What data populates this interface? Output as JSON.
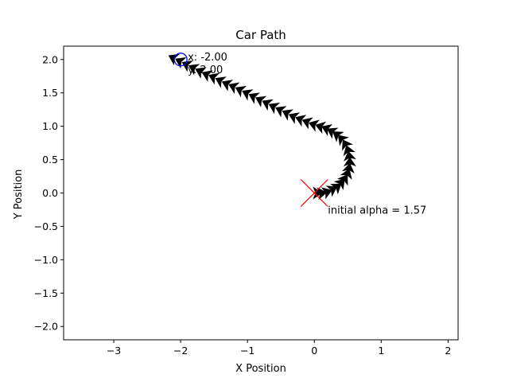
{
  "chart_data": {
    "type": "scatter",
    "title": "Car Path",
    "xlabel": "X Position",
    "ylabel": "Y Position",
    "xlim": [
      -3.75,
      2.15
    ],
    "ylim": [
      -2.2,
      2.2
    ],
    "xticks": [
      -3,
      -2,
      -1,
      0,
      1,
      2
    ],
    "yticks": [
      -2.0,
      -1.5,
      -1.0,
      -0.5,
      0.0,
      0.5,
      1.0,
      1.5,
      2.0
    ],
    "xtick_labels": [
      "−3",
      "−2",
      "−1",
      "0",
      "1",
      "2"
    ],
    "ytick_labels": [
      "−2.0",
      "−1.5",
      "−1.0",
      "−0.5",
      "0.0",
      "0.5",
      "1.0",
      "1.5",
      "2.0"
    ],
    "grid": false,
    "path_color": "#000000",
    "start": {
      "x": 0.0,
      "y": 0.0,
      "marker": "x",
      "color": "#ff0000"
    },
    "target": {
      "x": -2.0,
      "y": 2.0,
      "marker": "circle",
      "color": "#0000ff"
    },
    "annotations": {
      "start_label": "initial alpha = 1.57",
      "target_x_label": "x: -2.00",
      "target_y_label": "y: 2.00"
    },
    "path": [
      [
        0.05,
        0.0
      ],
      [
        0.12,
        0.0
      ],
      [
        0.2,
        0.02
      ],
      [
        0.28,
        0.06
      ],
      [
        0.35,
        0.1
      ],
      [
        0.41,
        0.16
      ],
      [
        0.46,
        0.22
      ],
      [
        0.5,
        0.3
      ],
      [
        0.52,
        0.38
      ],
      [
        0.53,
        0.47
      ],
      [
        0.52,
        0.56
      ],
      [
        0.5,
        0.65
      ],
      [
        0.46,
        0.74
      ],
      [
        0.4,
        0.82
      ],
      [
        0.33,
        0.88
      ],
      [
        0.25,
        0.93
      ],
      [
        0.17,
        0.97
      ],
      [
        0.08,
        1.0
      ],
      [
        -0.02,
        1.03
      ],
      [
        -0.12,
        1.07
      ],
      [
        -0.22,
        1.11
      ],
      [
        -0.32,
        1.15
      ],
      [
        -0.42,
        1.2
      ],
      [
        -0.52,
        1.25
      ],
      [
        -0.62,
        1.3
      ],
      [
        -0.72,
        1.35
      ],
      [
        -0.82,
        1.4
      ],
      [
        -0.92,
        1.45
      ],
      [
        -1.02,
        1.5
      ],
      [
        -1.12,
        1.55
      ],
      [
        -1.22,
        1.6
      ],
      [
        -1.32,
        1.64
      ],
      [
        -1.42,
        1.69
      ],
      [
        -1.52,
        1.74
      ],
      [
        -1.62,
        1.78
      ],
      [
        -1.72,
        1.83
      ],
      [
        -1.82,
        1.88
      ],
      [
        -1.92,
        1.93
      ],
      [
        -2.02,
        1.98
      ],
      [
        -2.12,
        2.03
      ]
    ]
  }
}
